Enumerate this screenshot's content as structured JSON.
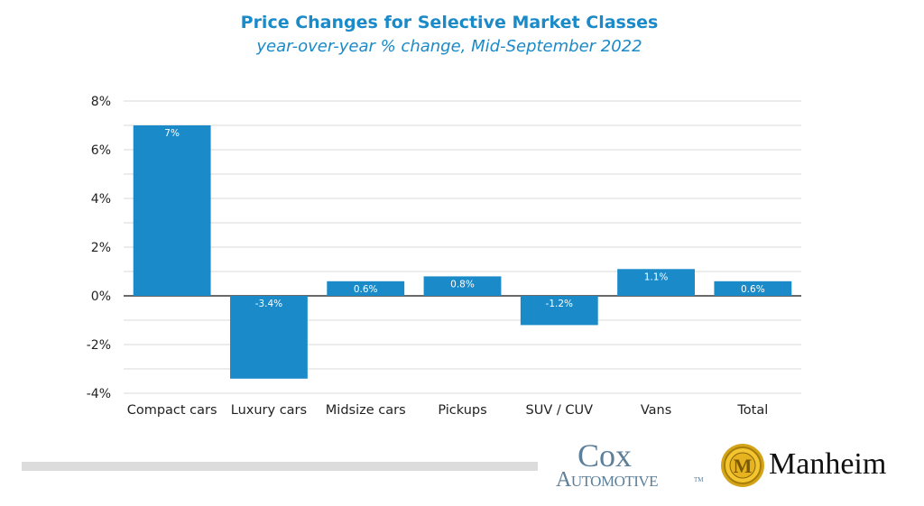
{
  "chart_data": {
    "type": "bar",
    "title": "Price Changes for Selective Market Classes",
    "subtitle": "year-over-year % change, Mid-September 2022",
    "xlabel": "",
    "ylabel": "",
    "categories": [
      "Compact cars",
      "Luxury cars",
      "Midsize cars",
      "Pickups",
      "SUV / CUV",
      "Vans",
      "Total"
    ],
    "values": [
      7.0,
      -3.4,
      0.6,
      0.8,
      -1.2,
      1.1,
      0.6
    ],
    "data_labels": [
      "7%",
      "-3.4%",
      "0.6%",
      "0.8%",
      "-1.2%",
      "1.1%",
      "0.6%"
    ],
    "ylim": [
      -4,
      8
    ],
    "yticks": [
      8,
      6,
      4,
      2,
      0,
      -2,
      -4
    ],
    "ytick_labels": [
      "8%",
      "6%",
      "4%",
      "2%",
      "0%",
      "-2%",
      "-4%"
    ],
    "grid": true,
    "legend": "none",
    "bar_color": "#1a8ac8"
  },
  "logos": {
    "cox_line1": "Cox",
    "cox_line2": "Automotive",
    "cox_tm": "TM",
    "manheim": "Manheim",
    "manheim_mark": "M"
  }
}
